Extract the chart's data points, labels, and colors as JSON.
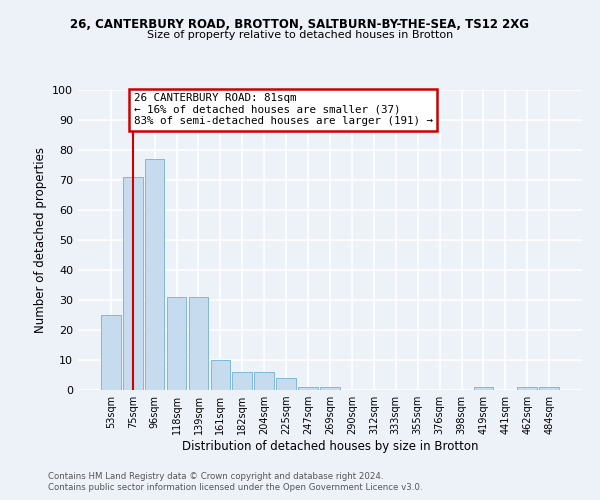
{
  "title_line1": "26, CANTERBURY ROAD, BROTTON, SALTBURN-BY-THE-SEA, TS12 2XG",
  "title_line2": "Size of property relative to detached houses in Brotton",
  "xlabel": "Distribution of detached houses by size in Brotton",
  "ylabel": "Number of detached properties",
  "bar_labels": [
    "53sqm",
    "75sqm",
    "96sqm",
    "118sqm",
    "139sqm",
    "161sqm",
    "182sqm",
    "204sqm",
    "225sqm",
    "247sqm",
    "269sqm",
    "290sqm",
    "312sqm",
    "333sqm",
    "355sqm",
    "376sqm",
    "398sqm",
    "419sqm",
    "441sqm",
    "462sqm",
    "484sqm"
  ],
  "bar_values": [
    25,
    71,
    77,
    31,
    31,
    10,
    6,
    6,
    4,
    1,
    1,
    0,
    0,
    0,
    0,
    0,
    0,
    1,
    0,
    1,
    1
  ],
  "bar_color": "#c6dcee",
  "bar_edge_color": "#7fb8d8",
  "property_line_x": 1.0,
  "annotation_title": "26 CANTERBURY ROAD: 81sqm",
  "annotation_line1": "← 16% of detached houses are smaller (37)",
  "annotation_line2": "83% of semi-detached houses are larger (191) →",
  "annotation_box_color": "#ffffff",
  "annotation_box_edge": "#cc0000",
  "property_line_color": "#cc0000",
  "ylim": [
    0,
    100
  ],
  "yticks": [
    0,
    10,
    20,
    30,
    40,
    50,
    60,
    70,
    80,
    90,
    100
  ],
  "footnote1": "Contains HM Land Registry data © Crown copyright and database right 2024.",
  "footnote2": "Contains public sector information licensed under the Open Government Licence v3.0.",
  "background_color": "#edf2f9",
  "grid_color": "#ffffff"
}
